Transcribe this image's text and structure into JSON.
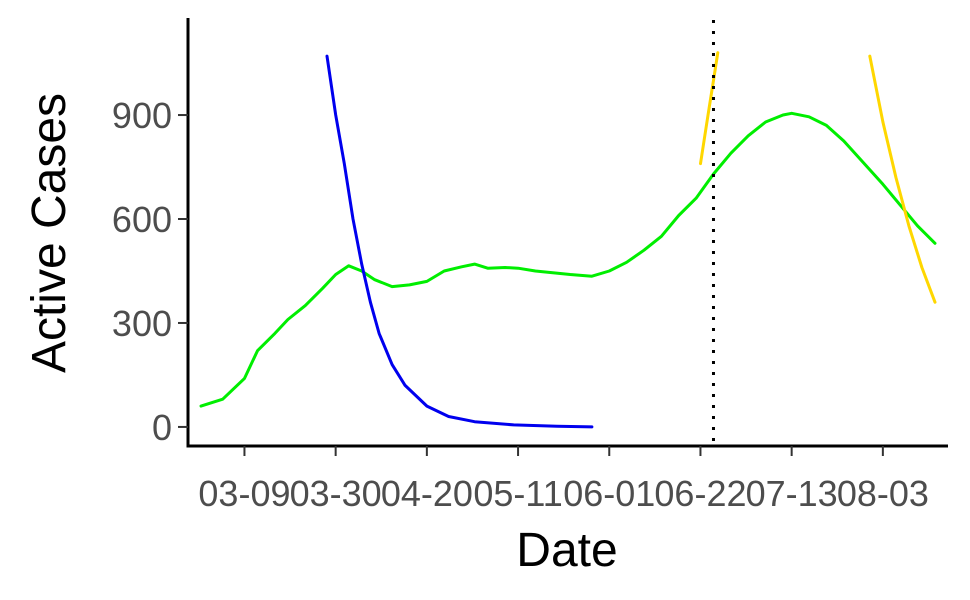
{
  "chart_data": {
    "type": "line",
    "title": "",
    "xlabel": "Date",
    "ylabel": "Active Cases",
    "x_ticks": [
      "03-09",
      "03-30",
      "04-20",
      "05-11",
      "06-01",
      "06-22",
      "07-13",
      "08-03"
    ],
    "y_ticks": [
      0,
      300,
      600,
      900
    ],
    "xlim": [
      "02-25",
      "08-18"
    ],
    "ylim": [
      -55,
      1180
    ],
    "grid": false,
    "legend": "none",
    "vline": {
      "x": "06-25",
      "style": "dotted",
      "color": "#000000"
    },
    "series": [
      {
        "color": "#00ee00",
        "points": [
          [
            "02-28",
            60
          ],
          [
            "03-04",
            80
          ],
          [
            "03-09",
            140
          ],
          [
            "03-12",
            220
          ],
          [
            "03-16",
            270
          ],
          [
            "03-19",
            310
          ],
          [
            "03-23",
            350
          ],
          [
            "03-27",
            400
          ],
          [
            "03-30",
            440
          ],
          [
            "04-02",
            465
          ],
          [
            "04-05",
            450
          ],
          [
            "04-08",
            425
          ],
          [
            "04-12",
            405
          ],
          [
            "04-16",
            410
          ],
          [
            "04-20",
            420
          ],
          [
            "04-24",
            450
          ],
          [
            "04-28",
            462
          ],
          [
            "05-01",
            470
          ],
          [
            "05-04",
            458
          ],
          [
            "05-08",
            460
          ],
          [
            "05-11",
            458
          ],
          [
            "05-15",
            450
          ],
          [
            "05-19",
            445
          ],
          [
            "05-23",
            440
          ],
          [
            "05-28",
            435
          ],
          [
            "06-01",
            450
          ],
          [
            "06-05",
            475
          ],
          [
            "06-09",
            510
          ],
          [
            "06-13",
            550
          ],
          [
            "06-17",
            610
          ],
          [
            "06-21",
            660
          ],
          [
            "06-25",
            730
          ],
          [
            "06-29",
            790
          ],
          [
            "07-03",
            840
          ],
          [
            "07-07",
            880
          ],
          [
            "07-11",
            900
          ],
          [
            "07-13",
            905
          ],
          [
            "07-17",
            895
          ],
          [
            "07-21",
            870
          ],
          [
            "07-25",
            825
          ],
          [
            "07-29",
            770
          ],
          [
            "08-03",
            700
          ],
          [
            "08-07",
            640
          ],
          [
            "08-11",
            580
          ],
          [
            "08-15",
            530
          ]
        ]
      },
      {
        "color": "#0000ee",
        "points": [
          [
            "03-28",
            1070
          ],
          [
            "03-30",
            900
          ],
          [
            "04-01",
            760
          ],
          [
            "04-03",
            600
          ],
          [
            "04-05",
            470
          ],
          [
            "04-07",
            360
          ],
          [
            "04-09",
            270
          ],
          [
            "04-12",
            180
          ],
          [
            "04-15",
            120
          ],
          [
            "04-20",
            60
          ],
          [
            "04-25",
            30
          ],
          [
            "05-01",
            15
          ],
          [
            "05-10",
            6
          ],
          [
            "05-20",
            2
          ],
          [
            "05-28",
            0
          ]
        ]
      },
      {
        "color": "#ffd700",
        "points": [
          [
            "06-22",
            760
          ],
          [
            "06-23",
            840
          ],
          [
            "06-24",
            920
          ],
          [
            "06-25",
            1000
          ],
          [
            "06-26",
            1080
          ]
        ]
      },
      {
        "color": "#ffd700",
        "points": [
          [
            "07-31",
            1070
          ],
          [
            "08-03",
            880
          ],
          [
            "08-06",
            720
          ],
          [
            "08-09",
            580
          ],
          [
            "08-12",
            460
          ],
          [
            "08-15",
            360
          ]
        ]
      }
    ]
  }
}
